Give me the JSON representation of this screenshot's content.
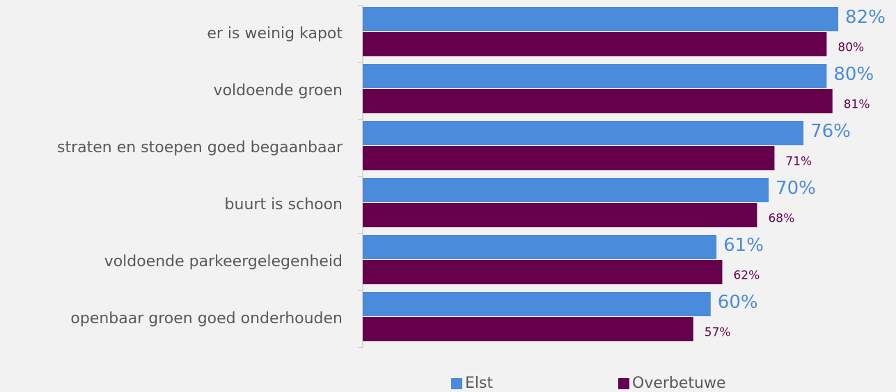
{
  "chart_data": {
    "type": "barh",
    "categories": [
      "er is weinig kapot",
      "voldoende groen",
      "straten en stoepen goed begaanbaar",
      "buurt is schoon",
      "voldoende parkeergelegenheid",
      "openbaar groen goed onderhouden"
    ],
    "series": [
      {
        "name": "Elst",
        "color": "#4a8bdb",
        "values": [
          82,
          80,
          76,
          70,
          61,
          60
        ],
        "value_labels": [
          "82%",
          "80%",
          "76%",
          "70%",
          "61%",
          "60%"
        ]
      },
      {
        "name": "Overbetuwe",
        "color": "#66004c",
        "values": [
          80,
          81,
          71,
          68,
          62,
          57
        ],
        "value_labels": [
          "80%",
          "81%",
          "71%",
          "68%",
          "62%",
          "57%"
        ]
      }
    ],
    "xlim": [
      0,
      100
    ],
    "legend": "bottom"
  }
}
